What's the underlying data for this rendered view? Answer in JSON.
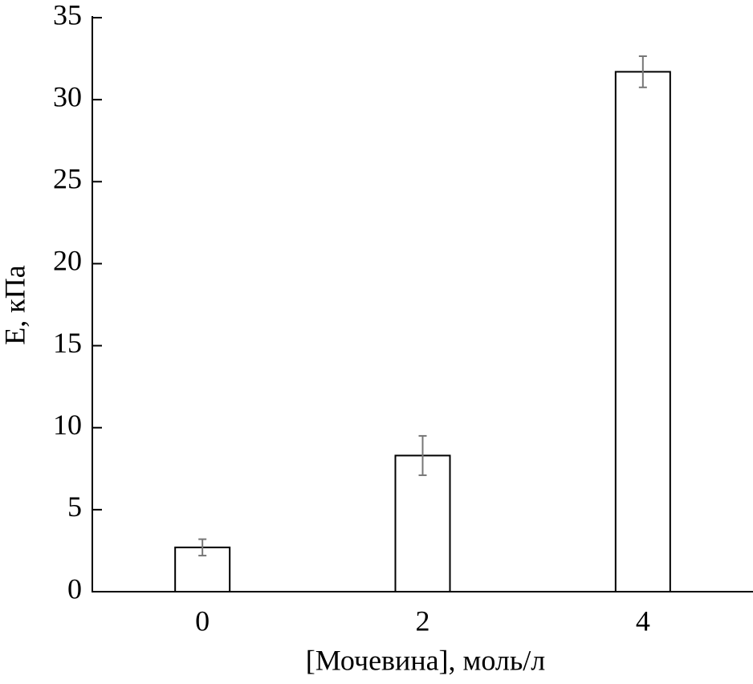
{
  "chart_data": {
    "type": "bar",
    "x_label": "[Мочевина], моль/л",
    "y_label": "E, кПа",
    "categories": [
      "0",
      "2",
      "4"
    ],
    "values": [
      2.7,
      8.3,
      31.7
    ],
    "errors": [
      0.5,
      1.2,
      0.95
    ],
    "color": "#ffffff",
    "edge_color": "#000000",
    "error_color": "#777777",
    "ylim": [
      0,
      35
    ],
    "yticks": [
      0,
      5,
      10,
      15,
      20,
      25,
      30,
      35
    ],
    "grid": false
  }
}
